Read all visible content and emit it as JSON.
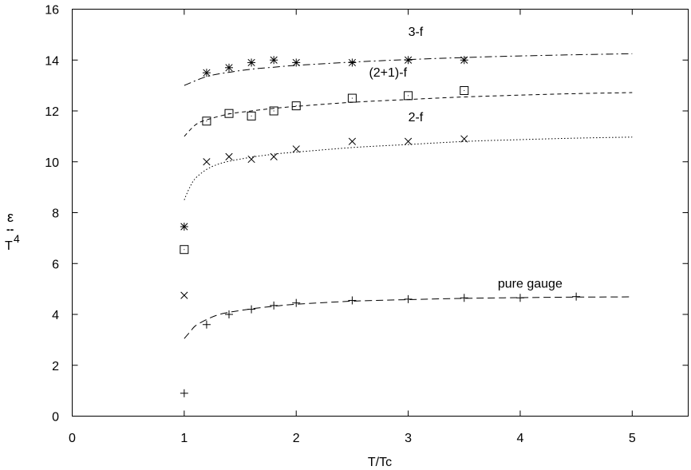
{
  "chart_data": {
    "type": "scatter",
    "title": "",
    "xlabel": "T/Tc",
    "ylabel_symbol": "ε",
    "ylabel_dash": "--",
    "ylabel_denominator": "T",
    "ylabel_exponent": "4",
    "xlim": [
      0,
      5.5
    ],
    "ylim": [
      0,
      16
    ],
    "xticks": [
      0,
      1,
      2,
      3,
      4,
      5
    ],
    "yticks": [
      0,
      2,
      4,
      6,
      8,
      10,
      12,
      14,
      16
    ],
    "grid": false,
    "legend": "none",
    "series": [
      {
        "name": "3-f",
        "marker": "asterisk",
        "curve_style": "dashdot",
        "label_at": [
          3.0,
          14.95
        ],
        "points": [
          [
            1.0,
            7.45
          ],
          [
            1.2,
            13.5
          ],
          [
            1.4,
            13.7
          ],
          [
            1.6,
            13.9
          ],
          [
            1.8,
            14.0
          ],
          [
            2.0,
            13.9
          ],
          [
            2.5,
            13.9
          ],
          [
            3.0,
            14.0
          ],
          [
            3.5,
            14.0
          ]
        ],
        "curve": {
          "x_start": 1.0,
          "x_end": 5.0,
          "points": [
            [
              1.0,
              13.0
            ],
            [
              1.2,
              13.35
            ],
            [
              1.4,
              13.52
            ],
            [
              1.6,
              13.64
            ],
            [
              1.8,
              13.72
            ],
            [
              2.0,
              13.79
            ],
            [
              2.5,
              13.92
            ],
            [
              3.0,
              14.02
            ],
            [
              3.5,
              14.1
            ],
            [
              4.0,
              14.16
            ],
            [
              4.5,
              14.21
            ],
            [
              5.0,
              14.25
            ]
          ]
        }
      },
      {
        "name": "(2+1)-f",
        "marker": "square",
        "curve_style": "dashed",
        "label_at": [
          2.65,
          13.35
        ],
        "points": [
          [
            1.0,
            6.55
          ],
          [
            1.2,
            11.6
          ],
          [
            1.4,
            11.9
          ],
          [
            1.6,
            11.8
          ],
          [
            1.8,
            12.0
          ],
          [
            2.0,
            12.2
          ],
          [
            2.5,
            12.5
          ],
          [
            3.0,
            12.6
          ],
          [
            3.5,
            12.8
          ]
        ],
        "curve": {
          "x_start": 1.0,
          "x_end": 5.0,
          "points": [
            [
              1.0,
              11.0
            ],
            [
              1.1,
              11.45
            ],
            [
              1.2,
              11.65
            ],
            [
              1.4,
              11.88
            ],
            [
              1.6,
              12.0
            ],
            [
              1.8,
              12.1
            ],
            [
              2.0,
              12.18
            ],
            [
              2.5,
              12.34
            ],
            [
              3.0,
              12.45
            ],
            [
              3.5,
              12.55
            ],
            [
              4.0,
              12.62
            ],
            [
              4.5,
              12.68
            ],
            [
              5.0,
              12.72
            ]
          ]
        }
      },
      {
        "name": "2-f",
        "marker": "cross",
        "curve_style": "dotted",
        "label_at": [
          3.0,
          11.6
        ],
        "points": [
          [
            1.0,
            4.75
          ],
          [
            1.2,
            10.0
          ],
          [
            1.4,
            10.2
          ],
          [
            1.6,
            10.1
          ],
          [
            1.8,
            10.2
          ],
          [
            2.0,
            10.5
          ],
          [
            2.5,
            10.8
          ],
          [
            3.0,
            10.8
          ],
          [
            3.5,
            10.9
          ]
        ],
        "curve": {
          "x_start": 1.0,
          "x_end": 5.0,
          "points": [
            [
              1.0,
              8.5
            ],
            [
              1.05,
              9.0
            ],
            [
              1.1,
              9.35
            ],
            [
              1.2,
              9.7
            ],
            [
              1.3,
              9.9
            ],
            [
              1.4,
              10.02
            ],
            [
              1.6,
              10.18
            ],
            [
              1.8,
              10.3
            ],
            [
              2.0,
              10.38
            ],
            [
              2.5,
              10.56
            ],
            [
              3.0,
              10.68
            ],
            [
              3.5,
              10.8
            ],
            [
              4.0,
              10.87
            ],
            [
              4.5,
              10.93
            ],
            [
              5.0,
              10.97
            ]
          ]
        }
      },
      {
        "name": "pure gauge",
        "marker": "plus",
        "curve_style": "longdash",
        "label_at": [
          3.8,
          5.05
        ],
        "points": [
          [
            1.0,
            0.9
          ],
          [
            1.2,
            3.6
          ],
          [
            1.4,
            4.0
          ],
          [
            1.6,
            4.2
          ],
          [
            1.8,
            4.35
          ],
          [
            2.0,
            4.45
          ],
          [
            2.5,
            4.55
          ],
          [
            3.0,
            4.6
          ],
          [
            3.5,
            4.65
          ],
          [
            4.0,
            4.65
          ],
          [
            4.5,
            4.7
          ]
        ],
        "curve": {
          "x_start": 1.0,
          "x_end": 5.0,
          "points": [
            [
              1.0,
              3.05
            ],
            [
              1.05,
              3.3
            ],
            [
              1.1,
              3.55
            ],
            [
              1.2,
              3.8
            ],
            [
              1.3,
              3.98
            ],
            [
              1.4,
              4.08
            ],
            [
              1.6,
              4.22
            ],
            [
              1.8,
              4.32
            ],
            [
              2.0,
              4.4
            ],
            [
              2.5,
              4.52
            ],
            [
              3.0,
              4.58
            ],
            [
              3.5,
              4.63
            ],
            [
              4.0,
              4.66
            ],
            [
              4.5,
              4.68
            ],
            [
              5.0,
              4.69
            ]
          ]
        }
      }
    ]
  }
}
